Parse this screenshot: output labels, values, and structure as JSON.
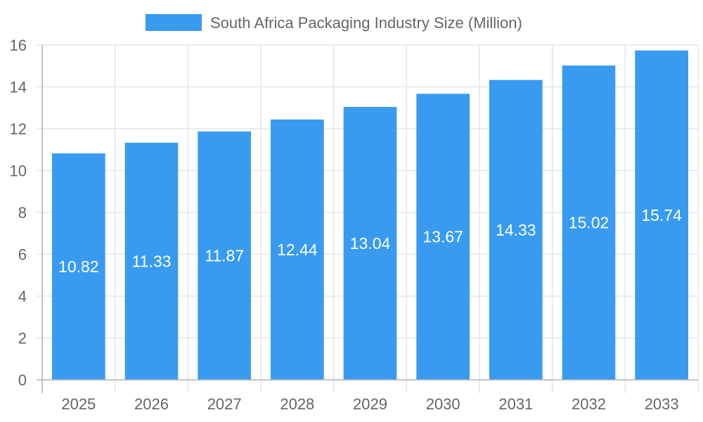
{
  "chart_data": {
    "type": "bar",
    "title": "",
    "xlabel": "",
    "ylabel": "",
    "categories": [
      "2025",
      "2026",
      "2027",
      "2028",
      "2029",
      "2030",
      "2031",
      "2032",
      "2033"
    ],
    "series": [
      {
        "name": "South Africa Packaging Industry Size (Million)",
        "values": [
          10.82,
          11.33,
          11.87,
          12.44,
          13.04,
          13.67,
          14.33,
          15.02,
          15.74
        ],
        "color": "#389BF0"
      }
    ],
    "ylim": [
      0,
      16
    ],
    "yticks": [
      0,
      2,
      4,
      6,
      8,
      10,
      12,
      14,
      16
    ],
    "grid": true,
    "legend": "top-center",
    "data_labels": true
  }
}
